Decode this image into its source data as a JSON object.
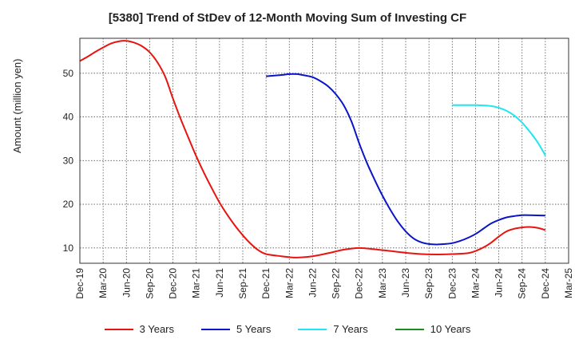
{
  "chart_data": {
    "type": "line",
    "title": "[5380]  Trend of StDev of 12-Month Moving Sum of Investing CF",
    "xlabel": "",
    "ylabel": "Amount (million yen)",
    "ylim": [
      6.5,
      58
    ],
    "yticks": [
      10,
      20,
      30,
      40,
      50
    ],
    "x_ticks": [
      "Dec-19",
      "Mar-20",
      "Jun-20",
      "Sep-20",
      "Dec-20",
      "Mar-21",
      "Jun-21",
      "Sep-21",
      "Dec-21",
      "Mar-22",
      "Jun-22",
      "Sep-22",
      "Dec-22",
      "Mar-23",
      "Jun-23",
      "Sep-23",
      "Dec-23",
      "Mar-24",
      "Jun-24",
      "Sep-24",
      "Dec-24",
      "Mar-25"
    ],
    "grid": true,
    "legend_position": "bottom",
    "series": [
      {
        "name": "3 Years",
        "color": "#e8140f",
        "points": [
          [
            "Dec-19",
            52.8
          ],
          [
            "Jan-20",
            53.8
          ],
          [
            "Feb-20",
            54.9
          ],
          [
            "Mar-20",
            55.9
          ],
          [
            "Apr-20",
            56.8
          ],
          [
            "May-20",
            57.3
          ],
          [
            "Jun-20",
            57.4
          ],
          [
            "Jul-20",
            57.0
          ],
          [
            "Aug-20",
            56.2
          ],
          [
            "Sep-20",
            54.8
          ],
          [
            "Oct-20",
            52.5
          ],
          [
            "Nov-20",
            49.2
          ],
          [
            "Dec-20",
            44.2
          ],
          [
            "Jan-21",
            39.5
          ],
          [
            "Feb-21",
            35.2
          ],
          [
            "Mar-21",
            31.0
          ],
          [
            "Apr-21",
            27.2
          ],
          [
            "May-21",
            23.7
          ],
          [
            "Jun-21",
            20.4
          ],
          [
            "Jul-21",
            17.6
          ],
          [
            "Aug-21",
            15.1
          ],
          [
            "Sep-21",
            12.9
          ],
          [
            "Oct-21",
            11.0
          ],
          [
            "Nov-21",
            9.5
          ],
          [
            "Dec-21",
            8.6
          ],
          [
            "Feb-22",
            8.1
          ],
          [
            "Mar-22",
            7.9
          ],
          [
            "Apr-22",
            7.8
          ],
          [
            "Jun-22",
            8.1
          ],
          [
            "Aug-22",
            8.8
          ],
          [
            "Oct-22",
            9.6
          ],
          [
            "Dec-22",
            10.0
          ],
          [
            "Feb-23",
            9.7
          ],
          [
            "Apr-23",
            9.3
          ],
          [
            "Jun-23",
            8.9
          ],
          [
            "Aug-23",
            8.6
          ],
          [
            "Oct-23",
            8.5
          ],
          [
            "Dec-23",
            8.6
          ],
          [
            "Feb-24",
            8.8
          ],
          [
            "Mar-24",
            9.3
          ],
          [
            "Apr-24",
            10.1
          ],
          [
            "May-24",
            11.2
          ],
          [
            "Jun-24",
            12.6
          ],
          [
            "Jul-24",
            13.8
          ],
          [
            "Aug-24",
            14.4
          ],
          [
            "Sep-24",
            14.7
          ],
          [
            "Oct-24",
            14.8
          ],
          [
            "Nov-24",
            14.6
          ],
          [
            "Dec-24",
            14.1
          ]
        ]
      },
      {
        "name": "5 Years",
        "color": "#0a14c8",
        "points": [
          [
            "Dec-21",
            49.3
          ],
          [
            "Feb-22",
            49.6
          ],
          [
            "Mar-22",
            49.8
          ],
          [
            "Apr-22",
            49.8
          ],
          [
            "May-22",
            49.5
          ],
          [
            "Jun-22",
            49.1
          ],
          [
            "Jul-22",
            48.2
          ],
          [
            "Aug-22",
            47.0
          ],
          [
            "Sep-22",
            45.2
          ],
          [
            "Oct-22",
            42.7
          ],
          [
            "Nov-22",
            39.0
          ],
          [
            "Dec-22",
            34.0
          ],
          [
            "Jan-23",
            29.5
          ],
          [
            "Feb-23",
            25.6
          ],
          [
            "Mar-23",
            22.0
          ],
          [
            "Apr-23",
            18.8
          ],
          [
            "May-23",
            16.0
          ],
          [
            "Jun-23",
            13.8
          ],
          [
            "Jul-23",
            12.2
          ],
          [
            "Aug-23",
            11.3
          ],
          [
            "Sep-23",
            10.9
          ],
          [
            "Oct-23",
            10.8
          ],
          [
            "Nov-23",
            10.9
          ],
          [
            "Dec-23",
            11.1
          ],
          [
            "Jan-24",
            11.6
          ],
          [
            "Feb-24",
            12.3
          ],
          [
            "Mar-24",
            13.2
          ],
          [
            "Apr-24",
            14.4
          ],
          [
            "May-24",
            15.6
          ],
          [
            "Jun-24",
            16.4
          ],
          [
            "Jul-24",
            17.0
          ],
          [
            "Aug-24",
            17.3
          ],
          [
            "Sep-24",
            17.5
          ],
          [
            "Oct-24",
            17.5
          ],
          [
            "Dec-24",
            17.4
          ]
        ]
      },
      {
        "name": "7 Years",
        "color": "#1fe6f0",
        "points": [
          [
            "Dec-23",
            42.7
          ],
          [
            "Feb-24",
            42.7
          ],
          [
            "Mar-24",
            42.7
          ],
          [
            "May-24",
            42.5
          ],
          [
            "Jun-24",
            42.1
          ],
          [
            "Jul-24",
            41.4
          ],
          [
            "Aug-24",
            40.3
          ],
          [
            "Sep-24",
            38.7
          ],
          [
            "Oct-24",
            36.6
          ],
          [
            "Nov-24",
            34.2
          ],
          [
            "Dec-24",
            31.2
          ]
        ]
      },
      {
        "name": "10 Years",
        "color": "#1e8c1e",
        "points": []
      }
    ]
  }
}
